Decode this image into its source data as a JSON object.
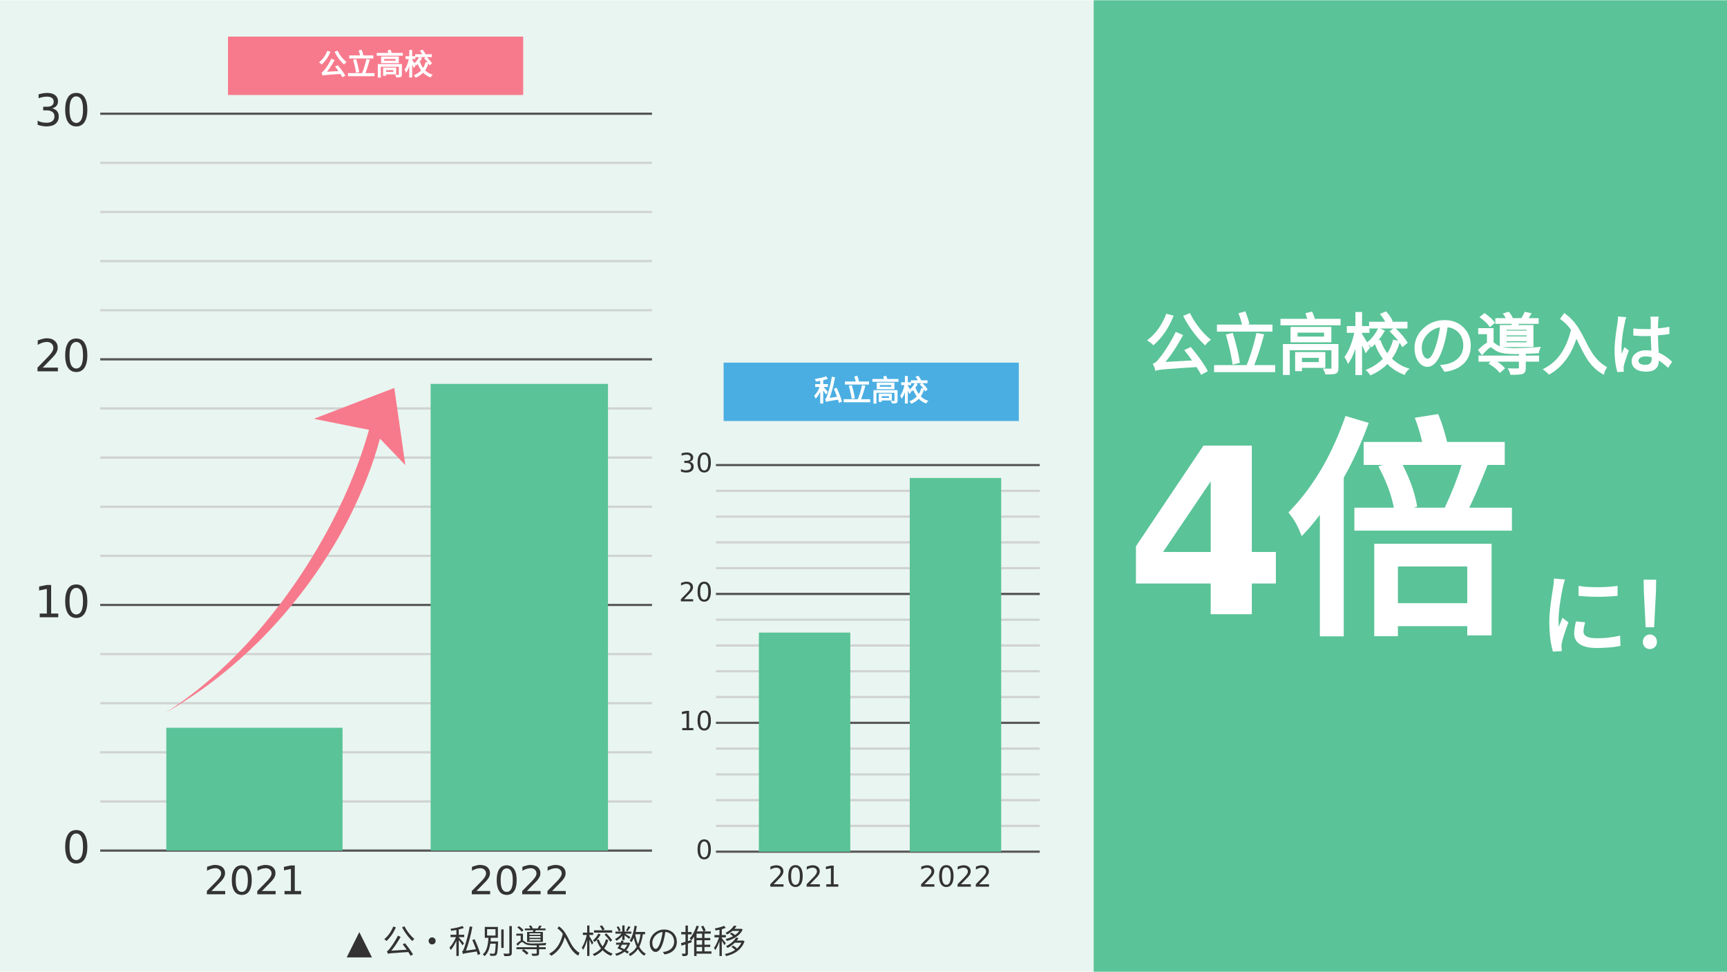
{
  "chart_data": [
    {
      "type": "bar",
      "title": "公立高校",
      "title_color": "#f77a8c",
      "categories": [
        "2021",
        "2022"
      ],
      "values": [
        5,
        19
      ],
      "color": "#5ac398",
      "ylim": [
        0,
        30
      ],
      "yticks": [
        0,
        10,
        20,
        30
      ],
      "minor_yticks": [
        2,
        4,
        6,
        8,
        12,
        14,
        16,
        18,
        22,
        24,
        26,
        28
      ],
      "grid": true
    },
    {
      "type": "bar",
      "title": "私立高校",
      "title_color": "#4aaee2",
      "categories": [
        "2021",
        "2022"
      ],
      "values": [
        17,
        29
      ],
      "color": "#5ac398",
      "ylim": [
        0,
        30
      ],
      "yticks": [
        0,
        10,
        20,
        30
      ],
      "minor_yticks": [
        2,
        4,
        6,
        8,
        12,
        14,
        16,
        18,
        22,
        24,
        26,
        28
      ],
      "grid": true
    }
  ],
  "caption": "▲ 公・私別導入校数の推移",
  "headline": {
    "line1": "公立高校の導入は",
    "big": "4倍",
    "tail": "に！"
  }
}
